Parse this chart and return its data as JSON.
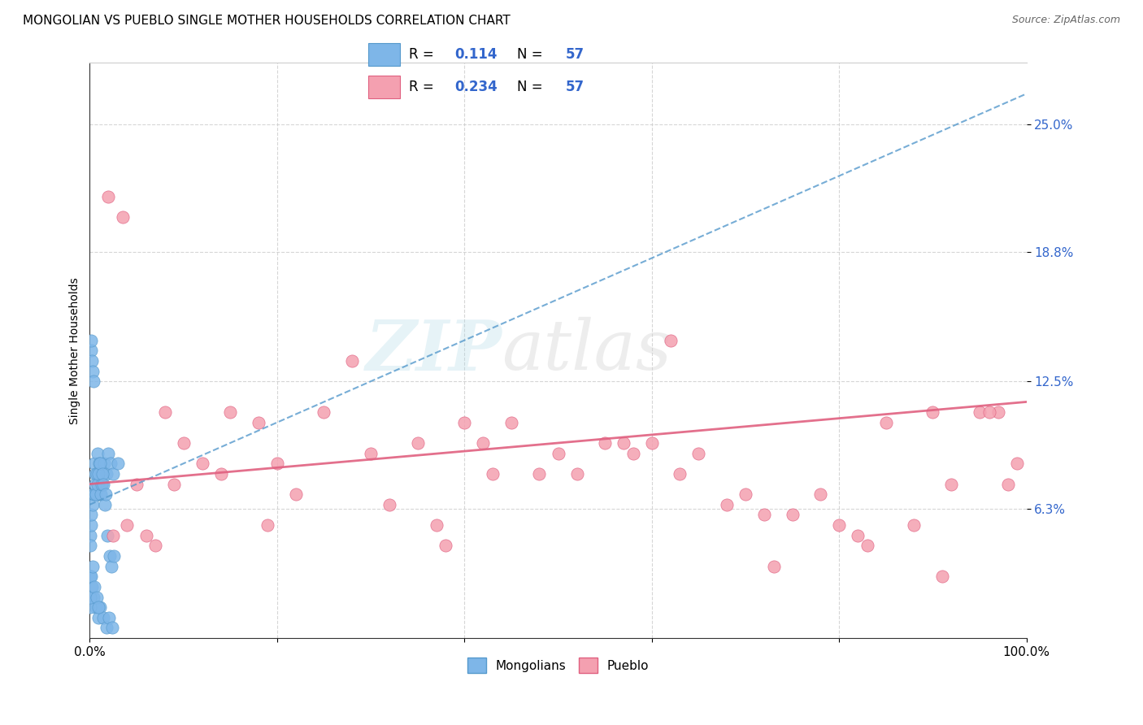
{
  "title": "MONGOLIAN VS PUEBLO SINGLE MOTHER HOUSEHOLDS CORRELATION CHART",
  "source": "Source: ZipAtlas.com",
  "ylabel": "Single Mother Households",
  "xlim": [
    0,
    100
  ],
  "ylim": [
    0,
    28
  ],
  "ytick_vals": [
    6.3,
    12.5,
    18.8,
    25.0
  ],
  "ytick_labels": [
    "6.3%",
    "12.5%",
    "18.8%",
    "25.0%"
  ],
  "mongolian_color": "#7EB6E8",
  "pueblo_color": "#F4A0B0",
  "mongolian_line_color": "#5599CC",
  "pueblo_line_color": "#E06080",
  "legend_color": "#3366CC",
  "legend_R_mongolian": "0.114",
  "legend_N_mongolian": "57",
  "legend_R_pueblo": "0.234",
  "legend_N_pueblo": "57",
  "watermark_zip": "ZIP",
  "watermark_atlas": "atlas",
  "mongolian_x": [
    0.1,
    0.2,
    0.15,
    0.3,
    0.4,
    0.5,
    0.6,
    0.8,
    1.0,
    1.2,
    1.3,
    1.5,
    1.8,
    2.0,
    2.2,
    2.5,
    3.0,
    0.05,
    0.08,
    0.12,
    0.18,
    0.25,
    0.35,
    0.45,
    0.55,
    0.65,
    0.75,
    0.85,
    0.95,
    1.05,
    1.15,
    1.25,
    1.35,
    1.45,
    1.6,
    1.7,
    1.9,
    2.1,
    2.3,
    2.6,
    0.07,
    0.22,
    0.42,
    0.62,
    0.88,
    1.1,
    1.4,
    1.75,
    2.05,
    2.4,
    0.03,
    0.09,
    0.17,
    0.32,
    0.52,
    0.72,
    0.92
  ],
  "mongolian_y": [
    14.0,
    13.5,
    14.5,
    13.0,
    12.5,
    8.5,
    8.0,
    9.0,
    8.5,
    8.0,
    7.5,
    8.5,
    8.0,
    9.0,
    8.5,
    8.0,
    8.5,
    5.0,
    4.5,
    5.5,
    6.0,
    7.0,
    6.5,
    7.0,
    7.5,
    7.0,
    8.0,
    7.5,
    8.0,
    8.5,
    7.0,
    7.5,
    8.0,
    7.5,
    6.5,
    7.0,
    5.0,
    4.0,
    3.5,
    4.0,
    3.0,
    2.5,
    2.0,
    1.5,
    1.0,
    1.5,
    1.0,
    0.5,
    1.0,
    0.5,
    1.5,
    2.0,
    3.0,
    3.5,
    2.5,
    2.0,
    1.5
  ],
  "pueblo_x": [
    2.0,
    3.5,
    5.0,
    8.0,
    10.0,
    12.0,
    15.0,
    18.0,
    20.0,
    25.0,
    28.0,
    30.0,
    35.0,
    38.0,
    40.0,
    42.0,
    45.0,
    48.0,
    50.0,
    55.0,
    58.0,
    60.0,
    62.0,
    65.0,
    68.0,
    70.0,
    72.0,
    75.0,
    78.0,
    80.0,
    82.0,
    85.0,
    88.0,
    90.0,
    92.0,
    95.0,
    97.0,
    98.0,
    99.0,
    2.5,
    4.0,
    6.0,
    9.0,
    14.0,
    22.0,
    32.0,
    43.0,
    52.0,
    63.0,
    73.0,
    83.0,
    91.0,
    96.0,
    7.0,
    19.0,
    37.0,
    57.0
  ],
  "pueblo_y": [
    21.5,
    20.5,
    7.5,
    11.0,
    9.5,
    8.5,
    11.0,
    10.5,
    8.5,
    11.0,
    13.5,
    9.0,
    9.5,
    4.5,
    10.5,
    9.5,
    10.5,
    8.0,
    9.0,
    9.5,
    9.0,
    9.5,
    14.5,
    9.0,
    6.5,
    7.0,
    6.0,
    6.0,
    7.0,
    5.5,
    5.0,
    10.5,
    5.5,
    11.0,
    7.5,
    11.0,
    11.0,
    7.5,
    8.5,
    5.0,
    5.5,
    5.0,
    7.5,
    8.0,
    7.0,
    6.5,
    8.0,
    8.0,
    8.0,
    3.5,
    4.5,
    3.0,
    11.0,
    4.5,
    5.5,
    5.5,
    9.5
  ],
  "mongolian_trend_x0": 0,
  "mongolian_trend_y0": 6.5,
  "mongolian_trend_x1": 100,
  "mongolian_trend_y1": 26.5,
  "pueblo_trend_x0": 0,
  "pueblo_trend_y0": 7.5,
  "pueblo_trend_x1": 100,
  "pueblo_trend_y1": 11.5
}
